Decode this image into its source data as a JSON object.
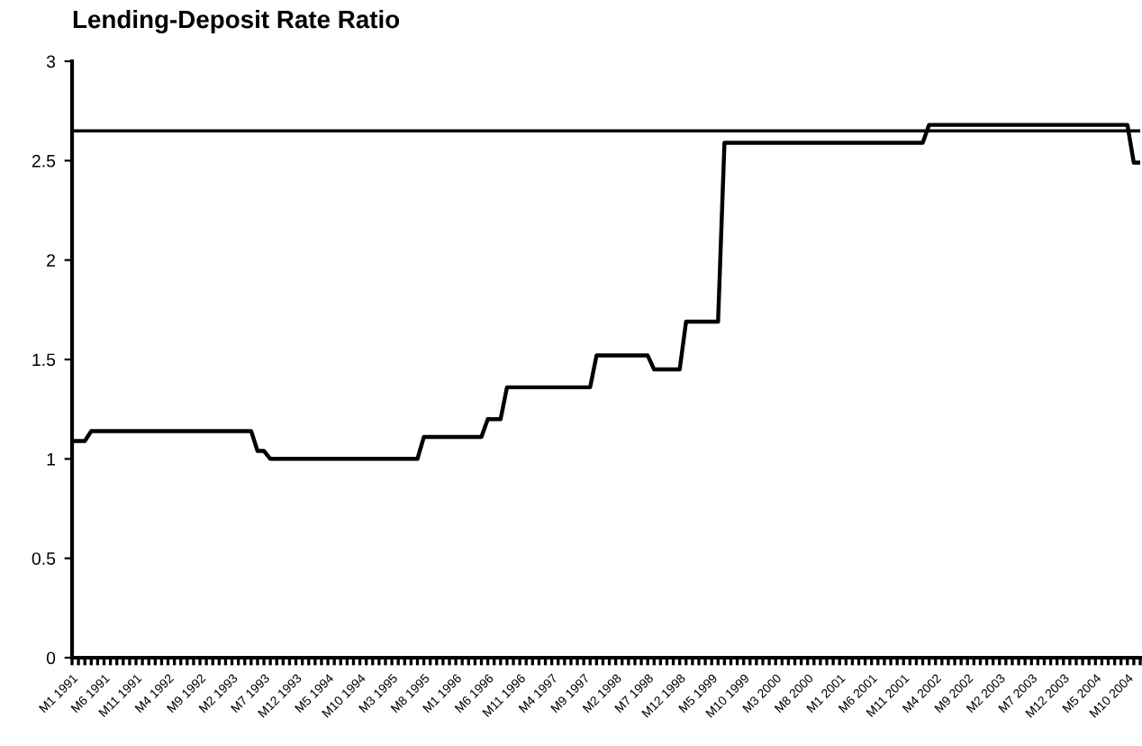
{
  "chart_data": {
    "type": "line",
    "title": "Lending-Deposit Rate Ratio",
    "categories": [
      "M1 1991",
      null,
      null,
      null,
      null,
      "M6 1991",
      null,
      null,
      null,
      null,
      "M11 1991",
      null,
      null,
      null,
      null,
      "M4 1992",
      null,
      null,
      null,
      null,
      "M9 1992",
      null,
      null,
      null,
      null,
      "M2 1993",
      null,
      null,
      null,
      null,
      "M7 1993",
      null,
      null,
      null,
      null,
      "M12 1993",
      null,
      null,
      null,
      null,
      "M5 1994",
      null,
      null,
      null,
      null,
      "M10 1994",
      null,
      null,
      null,
      null,
      "M3 1995",
      null,
      null,
      null,
      null,
      "M8 1995",
      null,
      null,
      null,
      null,
      "M1 1996",
      null,
      null,
      null,
      null,
      "M6 1996",
      null,
      null,
      null,
      null,
      "M11 1996",
      null,
      null,
      null,
      null,
      "M4 1997",
      null,
      null,
      null,
      null,
      "M9 1997",
      null,
      null,
      null,
      null,
      "M2 1998",
      null,
      null,
      null,
      null,
      "M7 1998",
      null,
      null,
      null,
      null,
      "M12 1998",
      null,
      null,
      null,
      null,
      "M5 1999",
      null,
      null,
      null,
      null,
      "M10 1999",
      null,
      null,
      null,
      null,
      "M3 2000",
      null,
      null,
      null,
      null,
      "M8 2000",
      null,
      null,
      null,
      null,
      "M1 2001",
      null,
      null,
      null,
      null,
      "M6 2001",
      null,
      null,
      null,
      null,
      "M11 2001",
      null,
      null,
      null,
      null,
      "M4 2002",
      null,
      null,
      null,
      null,
      "M9 2002",
      null,
      null,
      null,
      null,
      "M2 2003",
      null,
      null,
      null,
      null,
      "M7 2003",
      null,
      null,
      null,
      null,
      "M12 2003",
      null,
      null,
      null,
      null,
      "M5 2004",
      null,
      null,
      null,
      null,
      "M10 2004",
      null,
      null
    ],
    "series": [
      {
        "color": "#000000",
        "values": [
          1.09,
          1.09,
          1.09,
          1.14,
          1.14,
          1.14,
          1.14,
          1.14,
          1.14,
          1.14,
          1.14,
          1.14,
          1.14,
          1.14,
          1.14,
          1.14,
          1.14,
          1.14,
          1.14,
          1.14,
          1.14,
          1.14,
          1.14,
          1.14,
          1.14,
          1.14,
          1.14,
          1.14,
          1.14,
          1.04,
          1.04,
          1.0,
          1.0,
          1.0,
          1.0,
          1.0,
          1.0,
          1.0,
          1.0,
          1.0,
          1.0,
          1.0,
          1.0,
          1.0,
          1.0,
          1.0,
          1.0,
          1.0,
          1.0,
          1.0,
          1.0,
          1.0,
          1.0,
          1.0,
          1.0,
          1.11,
          1.11,
          1.11,
          1.11,
          1.11,
          1.11,
          1.11,
          1.11,
          1.11,
          1.11,
          1.2,
          1.2,
          1.2,
          1.36,
          1.36,
          1.36,
          1.36,
          1.36,
          1.36,
          1.36,
          1.36,
          1.36,
          1.36,
          1.36,
          1.36,
          1.36,
          1.36,
          1.52,
          1.52,
          1.52,
          1.52,
          1.52,
          1.52,
          1.52,
          1.52,
          1.52,
          1.45,
          1.45,
          1.45,
          1.45,
          1.45,
          1.69,
          1.69,
          1.69,
          1.69,
          1.69,
          1.69,
          2.59,
          2.59,
          2.59,
          2.59,
          2.59,
          2.59,
          2.59,
          2.59,
          2.59,
          2.59,
          2.59,
          2.59,
          2.59,
          2.59,
          2.59,
          2.59,
          2.59,
          2.59,
          2.59,
          2.59,
          2.59,
          2.59,
          2.59,
          2.59,
          2.59,
          2.59,
          2.59,
          2.59,
          2.59,
          2.59,
          2.59,
          2.59,
          2.68,
          2.68,
          2.68,
          2.68,
          2.68,
          2.68,
          2.68,
          2.68,
          2.68,
          2.68,
          2.68,
          2.68,
          2.68,
          2.68,
          2.68,
          2.68,
          2.68,
          2.68,
          2.68,
          2.68,
          2.68,
          2.68,
          2.68,
          2.68,
          2.68,
          2.68,
          2.68,
          2.68,
          2.68,
          2.68,
          2.68,
          2.68,
          2.49,
          2.49
        ]
      }
    ],
    "ref_lines": [
      {
        "axis": "y",
        "value": 2.65,
        "color": "#000000"
      }
    ],
    "ylim": [
      0,
      3
    ],
    "yticks": [
      0,
      0.5,
      1,
      1.5,
      2,
      2.5,
      3
    ],
    "grid": false,
    "legend": false,
    "marker": "none",
    "line_style": "solid"
  }
}
